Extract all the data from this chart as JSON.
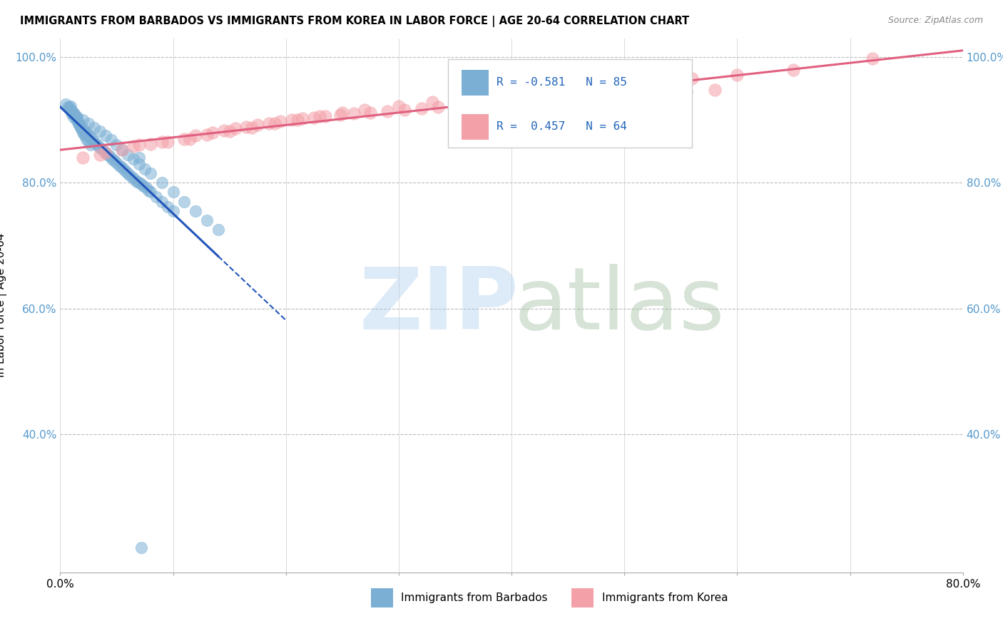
{
  "title": "IMMIGRANTS FROM BARBADOS VS IMMIGRANTS FROM KOREA IN LABOR FORCE | AGE 20-64 CORRELATION CHART",
  "source": "Source: ZipAtlas.com",
  "ylabel": "In Labor Force | Age 20-64",
  "color_barbados": "#7BAFD4",
  "color_korea": "#F4A0A8",
  "trendline_color_barbados": "#2255BB",
  "trendline_color_korea": "#E06080",
  "tick_color": "#5599CC",
  "watermark_zip_color": "#AACCEE",
  "watermark_atlas_color": "#99BB99",
  "xlim": [
    0.0,
    0.8
  ],
  "ylim": [
    0.18,
    1.03
  ],
  "ytick_vals": [
    0.4,
    0.6,
    0.8,
    1.0
  ],
  "ytick_labels": [
    "40.0%",
    "60.0%",
    "80.0%",
    "100.0%"
  ],
  "xtick_vals": [
    0.0,
    0.1,
    0.2,
    0.3,
    0.4,
    0.5,
    0.6,
    0.7,
    0.8
  ],
  "xtick_labels": [
    "0.0%",
    "",
    "",
    "",
    "",
    "",
    "",
    "",
    "80.0%"
  ],
  "barbados_x": [
    0.005,
    0.007,
    0.008,
    0.009,
    0.01,
    0.011,
    0.012,
    0.013,
    0.014,
    0.015,
    0.016,
    0.017,
    0.018,
    0.019,
    0.02,
    0.021,
    0.022,
    0.023,
    0.025,
    0.027,
    0.01,
    0.012,
    0.014,
    0.016,
    0.018,
    0.02,
    0.022,
    0.024,
    0.026,
    0.028,
    0.03,
    0.032,
    0.034,
    0.036,
    0.038,
    0.04,
    0.042,
    0.044,
    0.046,
    0.048,
    0.05,
    0.052,
    0.054,
    0.056,
    0.058,
    0.06,
    0.062,
    0.064,
    0.066,
    0.068,
    0.07,
    0.072,
    0.074,
    0.076,
    0.078,
    0.08,
    0.085,
    0.09,
    0.095,
    0.1,
    0.008,
    0.01,
    0.012,
    0.015,
    0.02,
    0.025,
    0.03,
    0.035,
    0.04,
    0.045,
    0.05,
    0.055,
    0.06,
    0.065,
    0.07,
    0.075,
    0.08,
    0.09,
    0.1,
    0.11,
    0.12,
    0.13,
    0.14,
    0.07,
    0.072
  ],
  "barbados_y": [
    0.925,
    0.92,
    0.918,
    0.922,
    0.915,
    0.91,
    0.912,
    0.908,
    0.905,
    0.9,
    0.895,
    0.892,
    0.888,
    0.885,
    0.88,
    0.878,
    0.875,
    0.87,
    0.865,
    0.86,
    0.91,
    0.905,
    0.9,
    0.895,
    0.89,
    0.885,
    0.882,
    0.878,
    0.875,
    0.87,
    0.865,
    0.862,
    0.858,
    0.855,
    0.852,
    0.848,
    0.845,
    0.842,
    0.838,
    0.835,
    0.832,
    0.828,
    0.825,
    0.822,
    0.818,
    0.815,
    0.812,
    0.808,
    0.805,
    0.802,
    0.8,
    0.798,
    0.795,
    0.792,
    0.788,
    0.785,
    0.778,
    0.77,
    0.762,
    0.755,
    0.92,
    0.915,
    0.91,
    0.905,
    0.9,
    0.895,
    0.888,
    0.882,
    0.875,
    0.868,
    0.86,
    0.852,
    0.845,
    0.838,
    0.83,
    0.822,
    0.815,
    0.8,
    0.785,
    0.77,
    0.755,
    0.74,
    0.725,
    0.84,
    0.22
  ],
  "korea_x": [
    0.02,
    0.04,
    0.055,
    0.065,
    0.08,
    0.095,
    0.11,
    0.12,
    0.135,
    0.145,
    0.155,
    0.165,
    0.175,
    0.185,
    0.195,
    0.205,
    0.215,
    0.225,
    0.235,
    0.248,
    0.26,
    0.275,
    0.29,
    0.305,
    0.32,
    0.335,
    0.35,
    0.365,
    0.38,
    0.395,
    0.41,
    0.425,
    0.44,
    0.455,
    0.475,
    0.495,
    0.51,
    0.53,
    0.555,
    0.58,
    0.035,
    0.07,
    0.09,
    0.115,
    0.13,
    0.15,
    0.17,
    0.19,
    0.21,
    0.23,
    0.25,
    0.27,
    0.3,
    0.33,
    0.36,
    0.39,
    0.42,
    0.455,
    0.49,
    0.525,
    0.56,
    0.6,
    0.65,
    0.72
  ],
  "korea_y": [
    0.84,
    0.848,
    0.852,
    0.858,
    0.862,
    0.865,
    0.87,
    0.875,
    0.88,
    0.883,
    0.886,
    0.889,
    0.892,
    0.895,
    0.898,
    0.9,
    0.902,
    0.904,
    0.906,
    0.908,
    0.91,
    0.912,
    0.914,
    0.916,
    0.918,
    0.92,
    0.922,
    0.924,
    0.926,
    0.928,
    0.93,
    0.932,
    0.934,
    0.935,
    0.937,
    0.94,
    0.942,
    0.944,
    0.946,
    0.948,
    0.845,
    0.86,
    0.865,
    0.87,
    0.876,
    0.882,
    0.888,
    0.894,
    0.9,
    0.906,
    0.912,
    0.916,
    0.922,
    0.928,
    0.933,
    0.938,
    0.943,
    0.948,
    0.954,
    0.96,
    0.966,
    0.972,
    0.98,
    0.998
  ]
}
